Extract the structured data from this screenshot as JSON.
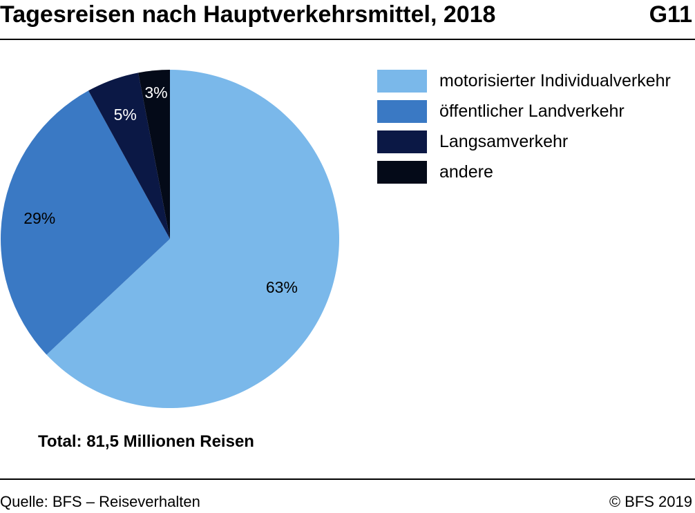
{
  "header": {
    "title": "Tagesreisen nach Hauptverkehrsmittel, 2018",
    "code": "G11"
  },
  "footer": {
    "source": "Quelle: BFS – Reiseverhalten",
    "copyright": "© BFS 2019"
  },
  "chart_data": {
    "type": "pie",
    "title": "Tagesreisen nach Hauptverkehrsmittel, 2018",
    "unit": "%",
    "total_note": "Total: 81,5 Millionen Reisen",
    "legend_position": "right",
    "slices": [
      {
        "name": "motorisierter Individualverkehr",
        "value": 63,
        "label": "63%",
        "color": "#7ab8ea",
        "label_color": "#000000"
      },
      {
        "name": "öffentlicher Landverkehr",
        "value": 29,
        "label": "29%",
        "color": "#3a79c4",
        "label_color": "#000000"
      },
      {
        "name": "Langsamverkehr",
        "value": 5,
        "label": "5%",
        "color": "#0b1845",
        "label_color": "#ffffff"
      },
      {
        "name": "andere",
        "value": 3,
        "label": "3%",
        "color": "#040a18",
        "label_color": "#ffffff"
      }
    ]
  }
}
